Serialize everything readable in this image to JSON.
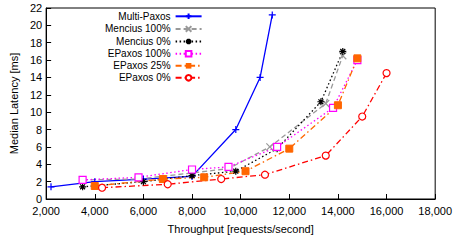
{
  "chart_data": {
    "type": "line",
    "x_label": "Throughput [requests/second]",
    "y_label": "Median Latency [ms]",
    "xlim": [
      2000,
      18000
    ],
    "xticks": [
      2000,
      4000,
      6000,
      8000,
      10000,
      12000,
      14000,
      16000,
      18000
    ],
    "ylim": [
      0,
      22
    ],
    "yticks": [
      0,
      2,
      4,
      6,
      8,
      10,
      12,
      14,
      16,
      18,
      20,
      22
    ],
    "grid": false,
    "legend": "upper left",
    "series": [
      {
        "name": "Multi-Paxos",
        "color": "#0000ff",
        "marker": "plus",
        "line_style": "solid",
        "x": [
          2200,
          4000,
          6000,
          8000,
          9800,
          10800,
          11300
        ],
        "values": [
          1.4,
          2.0,
          2.3,
          2.6,
          8.0,
          14.0,
          21.2
        ]
      },
      {
        "name": "Mencius 100%",
        "color": "#999999",
        "marker": "x",
        "line_style": "dashed",
        "x": [
          3500,
          5800,
          8000,
          9500,
          11200,
          13500,
          14200
        ],
        "values": [
          2.2,
          2.3,
          3.0,
          3.5,
          6.0,
          11.0,
          16.5
        ]
      },
      {
        "name": "Mencius 0%",
        "color": "#000000",
        "marker": "asterisk",
        "line_style": "dotted",
        "x": [
          3500,
          6000,
          8000,
          9800,
          11500,
          13300,
          14200
        ],
        "values": [
          1.4,
          2.0,
          2.7,
          3.2,
          5.8,
          11.2,
          17.0
        ]
      },
      {
        "name": "EPaxos 100%",
        "color": "#ff00ff",
        "marker": "square-open",
        "line_style": "dotted",
        "x": [
          3500,
          5800,
          8000,
          9500,
          11500,
          13800,
          14800
        ],
        "values": [
          2.2,
          2.5,
          3.4,
          3.7,
          6.0,
          10.5,
          16.0
        ]
      },
      {
        "name": "EPaxos 25%",
        "color": "#ff6600",
        "marker": "square",
        "line_style": "dashdot",
        "x": [
          4000,
          6800,
          8500,
          10200,
          12000,
          14000,
          14800
        ],
        "values": [
          1.5,
          2.3,
          2.5,
          3.2,
          5.8,
          10.8,
          16.2
        ]
      },
      {
        "name": "EPaxos 0%",
        "color": "#ff0000",
        "marker": "circle-open",
        "line_style": "dashdot",
        "x": [
          4300,
          7000,
          9200,
          11000,
          13500,
          15000,
          16000
        ],
        "values": [
          1.3,
          1.7,
          2.3,
          2.8,
          5.0,
          9.5,
          14.5
        ]
      }
    ]
  }
}
